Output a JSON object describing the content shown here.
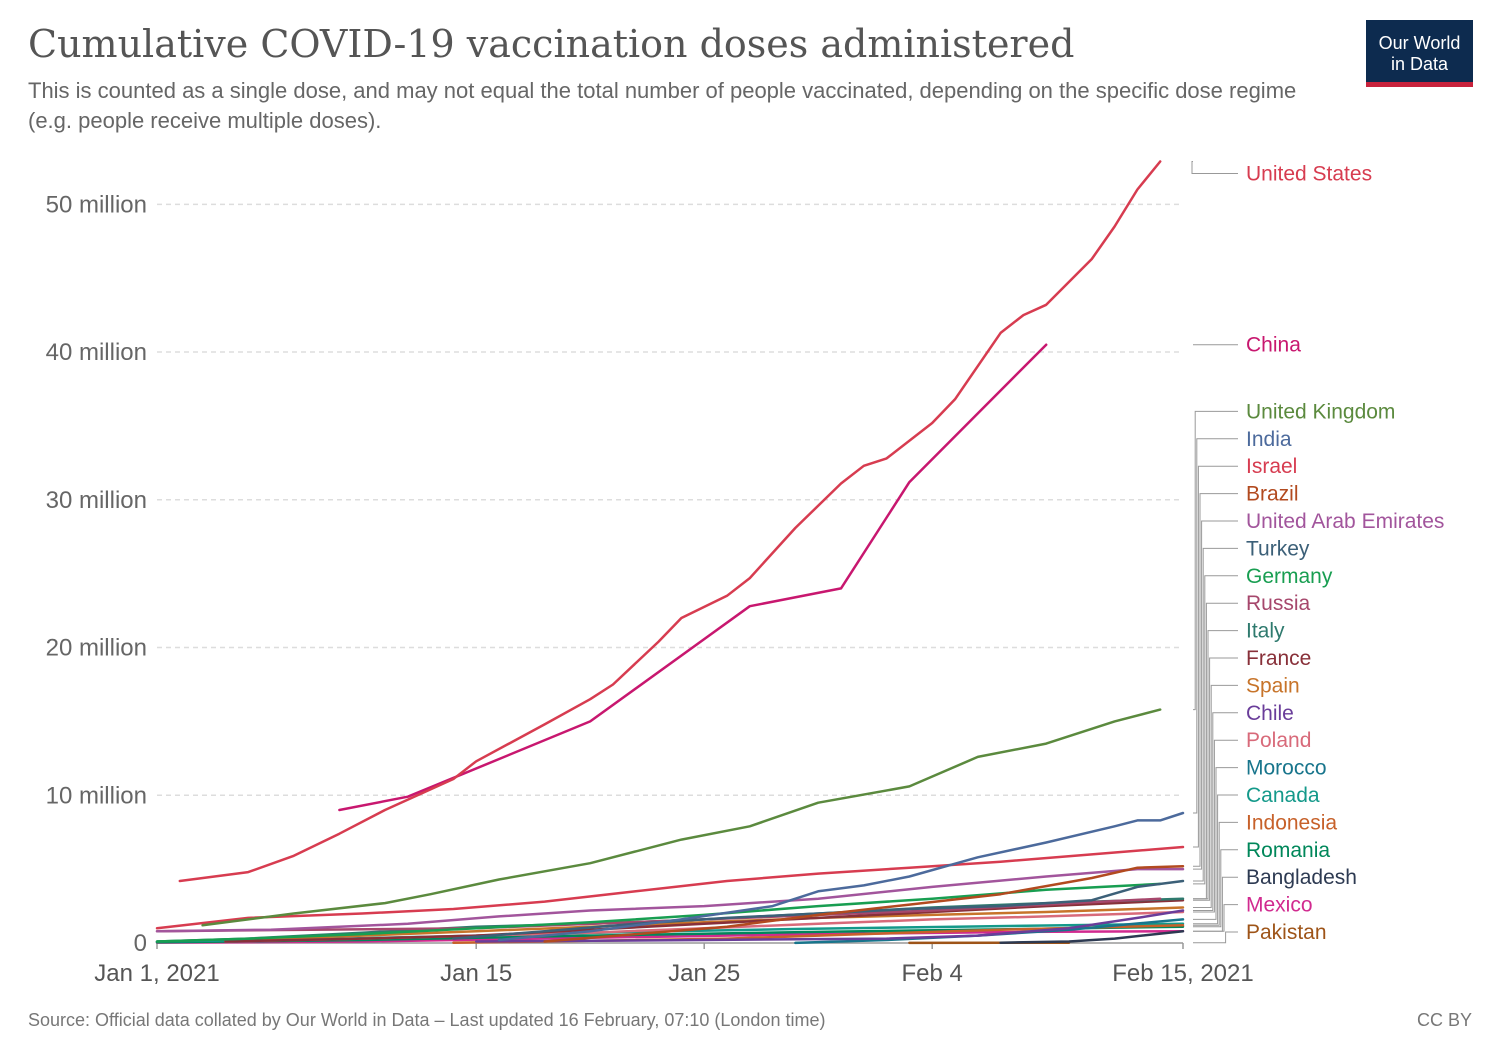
{
  "header": {
    "title": "Cumulative COVID-19 vaccination doses administered",
    "subtitle": "This is counted as a single dose, and may not equal the total number of people vaccinated, depending on the specific dose regime (e.g. people receive multiple doses).",
    "logo_line1": "Our World",
    "logo_line2": "in Data"
  },
  "footer": {
    "source": "Source: Official data collated by Our World in Data – Last updated 16 February, 07:10 (London time)",
    "license": "CC BY"
  },
  "chart_data": {
    "type": "line",
    "title": "Cumulative COVID-19 vaccination doses administered",
    "xlabel": "",
    "ylabel": "",
    "x_start": "2021-01-01",
    "x_end": "2021-02-15",
    "ylim": [
      0,
      53000000
    ],
    "grid": "horizontal dashed",
    "legend": "right",
    "y_ticks": [
      {
        "value": 0,
        "label": "0"
      },
      {
        "value": 10000000,
        "label": "10 million"
      },
      {
        "value": 20000000,
        "label": "20 million"
      },
      {
        "value": 30000000,
        "label": "30 million"
      },
      {
        "value": 40000000,
        "label": "40 million"
      },
      {
        "value": 50000000,
        "label": "50 million"
      }
    ],
    "x_ticks": [
      {
        "date": "2021-01-01",
        "label": "Jan 1, 2021"
      },
      {
        "date": "2021-01-15",
        "label": "Jan 15"
      },
      {
        "date": "2021-01-25",
        "label": "Jan 25"
      },
      {
        "date": "2021-02-04",
        "label": "Feb 4"
      },
      {
        "date": "2021-02-15",
        "label": "Feb 15, 2021"
      }
    ],
    "series": [
      {
        "name": "United States",
        "color": "#d73c50",
        "points": [
          [
            "2021-01-02",
            4200000
          ],
          [
            "2021-01-05",
            4800000
          ],
          [
            "2021-01-07",
            5900000
          ],
          [
            "2021-01-09",
            7400000
          ],
          [
            "2021-01-11",
            9000000
          ],
          [
            "2021-01-14",
            11100000
          ],
          [
            "2021-01-15",
            12300000
          ],
          [
            "2021-01-18",
            14800000
          ],
          [
            "2021-01-20",
            16500000
          ],
          [
            "2021-01-21",
            17500000
          ],
          [
            "2021-01-23",
            20400000
          ],
          [
            "2021-01-24",
            22000000
          ],
          [
            "2021-01-26",
            23500000
          ],
          [
            "2021-01-27",
            24700000
          ],
          [
            "2021-01-29",
            28100000
          ],
          [
            "2021-01-31",
            31100000
          ],
          [
            "2021-02-01",
            32300000
          ],
          [
            "2021-02-02",
            32800000
          ],
          [
            "2021-02-04",
            35200000
          ],
          [
            "2021-02-05",
            36800000
          ],
          [
            "2021-02-07",
            41300000
          ],
          [
            "2021-02-08",
            42500000
          ],
          [
            "2021-02-09",
            43200000
          ],
          [
            "2021-02-11",
            46300000
          ],
          [
            "2021-02-12",
            48500000
          ],
          [
            "2021-02-13",
            51000000
          ],
          [
            "2021-02-14",
            52900000
          ]
        ]
      },
      {
        "name": "China",
        "color": "#c8176f",
        "points": [
          [
            "2021-01-09",
            9000000
          ],
          [
            "2021-01-12",
            9900000
          ],
          [
            "2021-01-20",
            15000000
          ],
          [
            "2021-01-27",
            22800000
          ],
          [
            "2021-01-31",
            24000000
          ],
          [
            "2021-02-03",
            31200000
          ],
          [
            "2021-02-09",
            40500000
          ]
        ]
      },
      {
        "name": "United Kingdom",
        "color": "#5b8a3e",
        "points": [
          [
            "2021-01-03",
            1200000
          ],
          [
            "2021-01-07",
            2000000
          ],
          [
            "2021-01-11",
            2700000
          ],
          [
            "2021-01-13",
            3300000
          ],
          [
            "2021-01-16",
            4300000
          ],
          [
            "2021-01-20",
            5400000
          ],
          [
            "2021-01-24",
            7000000
          ],
          [
            "2021-01-27",
            7900000
          ],
          [
            "2021-01-30",
            9500000
          ],
          [
            "2021-02-03",
            10600000
          ],
          [
            "2021-02-06",
            12600000
          ],
          [
            "2021-02-09",
            13500000
          ],
          [
            "2021-02-12",
            15000000
          ],
          [
            "2021-02-14",
            15800000
          ]
        ]
      },
      {
        "name": "India",
        "color": "#4c6a9c",
        "points": [
          [
            "2021-01-16",
            200000
          ],
          [
            "2021-01-20",
            800000
          ],
          [
            "2021-01-24",
            1600000
          ],
          [
            "2021-01-28",
            2500000
          ],
          [
            "2021-01-30",
            3500000
          ],
          [
            "2021-02-01",
            3900000
          ],
          [
            "2021-02-03",
            4500000
          ],
          [
            "2021-02-06",
            5800000
          ],
          [
            "2021-02-09",
            6800000
          ],
          [
            "2021-02-12",
            7900000
          ],
          [
            "2021-02-13",
            8300000
          ],
          [
            "2021-02-14",
            8300000
          ],
          [
            "2021-02-15",
            8800000
          ]
        ]
      },
      {
        "name": "Israel",
        "color": "#d73c50",
        "points": [
          [
            "2021-01-01",
            1000000
          ],
          [
            "2021-01-05",
            1700000
          ],
          [
            "2021-01-10",
            2000000
          ],
          [
            "2021-01-14",
            2300000
          ],
          [
            "2021-01-18",
            2800000
          ],
          [
            "2021-01-22",
            3500000
          ],
          [
            "2021-01-26",
            4200000
          ],
          [
            "2021-01-30",
            4700000
          ],
          [
            "2021-02-03",
            5100000
          ],
          [
            "2021-02-07",
            5500000
          ],
          [
            "2021-02-11",
            6000000
          ],
          [
            "2021-02-15",
            6500000
          ]
        ]
      },
      {
        "name": "Brazil",
        "color": "#b24a1f",
        "points": [
          [
            "2021-01-18",
            100000
          ],
          [
            "2021-01-22",
            600000
          ],
          [
            "2021-01-26",
            1100000
          ],
          [
            "2021-01-30",
            1900000
          ],
          [
            "2021-02-03",
            2600000
          ],
          [
            "2021-02-07",
            3300000
          ],
          [
            "2021-02-11",
            4400000
          ],
          [
            "2021-02-13",
            5100000
          ],
          [
            "2021-02-15",
            5200000
          ]
        ]
      },
      {
        "name": "United Arab Emirates",
        "color": "#a2559c",
        "points": [
          [
            "2021-01-01",
            800000
          ],
          [
            "2021-01-06",
            900000
          ],
          [
            "2021-01-12",
            1300000
          ],
          [
            "2021-01-16",
            1800000
          ],
          [
            "2021-01-20",
            2200000
          ],
          [
            "2021-01-25",
            2500000
          ],
          [
            "2021-01-30",
            3000000
          ],
          [
            "2021-02-04",
            3800000
          ],
          [
            "2021-02-09",
            4500000
          ],
          [
            "2021-02-13",
            5000000
          ],
          [
            "2021-02-15",
            5000000
          ]
        ]
      },
      {
        "name": "Turkey",
        "color": "#3c6078",
        "points": [
          [
            "2021-01-14",
            300000
          ],
          [
            "2021-01-18",
            800000
          ],
          [
            "2021-01-22",
            1300000
          ],
          [
            "2021-01-26",
            1700000
          ],
          [
            "2021-01-30",
            2000000
          ],
          [
            "2021-02-03",
            2300000
          ],
          [
            "2021-02-07",
            2500000
          ],
          [
            "2021-02-11",
            2900000
          ],
          [
            "2021-02-13",
            3800000
          ],
          [
            "2021-02-15",
            4200000
          ]
        ]
      },
      {
        "name": "Germany",
        "color": "#189e51",
        "points": [
          [
            "2021-01-01",
            100000
          ],
          [
            "2021-01-05",
            300000
          ],
          [
            "2021-01-10",
            600000
          ],
          [
            "2021-01-15",
            1000000
          ],
          [
            "2021-01-20",
            1400000
          ],
          [
            "2021-01-25",
            1900000
          ],
          [
            "2021-01-30",
            2500000
          ],
          [
            "2021-02-04",
            3000000
          ],
          [
            "2021-02-09",
            3600000
          ],
          [
            "2021-02-14",
            4000000
          ]
        ]
      },
      {
        "name": "Russia",
        "color": "#a6476c",
        "points": [
          [
            "2021-01-01",
            800000
          ],
          [
            "2021-01-15",
            1000000
          ],
          [
            "2021-01-25",
            1600000
          ],
          [
            "2021-02-04",
            2200000
          ],
          [
            "2021-02-14",
            3000000
          ]
        ]
      },
      {
        "name": "Italy",
        "color": "#2f7a6e",
        "points": [
          [
            "2021-01-01",
            100000
          ],
          [
            "2021-01-05",
            300000
          ],
          [
            "2021-01-10",
            700000
          ],
          [
            "2021-01-15",
            1100000
          ],
          [
            "2021-01-20",
            1300000
          ],
          [
            "2021-01-25",
            1600000
          ],
          [
            "2021-01-30",
            2000000
          ],
          [
            "2021-02-04",
            2400000
          ],
          [
            "2021-02-09",
            2700000
          ],
          [
            "2021-02-15",
            3000000
          ]
        ]
      },
      {
        "name": "France",
        "color": "#883039",
        "points": [
          [
            "2021-01-04",
            100000
          ],
          [
            "2021-01-10",
            300000
          ],
          [
            "2021-01-15",
            500000
          ],
          [
            "2021-01-20",
            900000
          ],
          [
            "2021-01-25",
            1300000
          ],
          [
            "2021-01-30",
            1700000
          ],
          [
            "2021-02-04",
            2100000
          ],
          [
            "2021-02-09",
            2500000
          ],
          [
            "2021-02-15",
            2900000
          ]
        ]
      },
      {
        "name": "Spain",
        "color": "#c7742a",
        "points": [
          [
            "2021-01-04",
            200000
          ],
          [
            "2021-01-10",
            500000
          ],
          [
            "2021-01-15",
            800000
          ],
          [
            "2021-01-20",
            1100000
          ],
          [
            "2021-01-25",
            1400000
          ],
          [
            "2021-01-30",
            1700000
          ],
          [
            "2021-02-04",
            1900000
          ],
          [
            "2021-02-09",
            2100000
          ],
          [
            "2021-02-15",
            2400000
          ]
        ]
      },
      {
        "name": "Chile",
        "color": "#6a3d9a",
        "points": [
          [
            "2021-01-15",
            100000
          ],
          [
            "2021-01-25",
            200000
          ],
          [
            "2021-02-02",
            300000
          ],
          [
            "2021-02-06",
            500000
          ],
          [
            "2021-02-10",
            1000000
          ],
          [
            "2021-02-13",
            1700000
          ],
          [
            "2021-02-15",
            2200000
          ]
        ]
      },
      {
        "name": "Poland",
        "color": "#d86a7a",
        "points": [
          [
            "2021-01-04",
            100000
          ],
          [
            "2021-01-10",
            300000
          ],
          [
            "2021-01-15",
            500000
          ],
          [
            "2021-01-20",
            700000
          ],
          [
            "2021-01-25",
            1000000
          ],
          [
            "2021-01-30",
            1300000
          ],
          [
            "2021-02-04",
            1600000
          ],
          [
            "2021-02-09",
            1800000
          ],
          [
            "2021-02-15",
            2100000
          ]
        ]
      },
      {
        "name": "Morocco",
        "color": "#18758c",
        "points": [
          [
            "2021-01-29",
            10000
          ],
          [
            "2021-02-02",
            200000
          ],
          [
            "2021-02-06",
            500000
          ],
          [
            "2021-02-10",
            900000
          ],
          [
            "2021-02-15",
            1600000
          ]
        ]
      },
      {
        "name": "Indonesia",
        "color": "#c7612a",
        "points": [
          [
            "2021-01-14",
            20000
          ],
          [
            "2021-01-20",
            150000
          ],
          [
            "2021-01-26",
            300000
          ],
          [
            "2021-02-01",
            600000
          ],
          [
            "2021-02-07",
            900000
          ],
          [
            "2021-02-15",
            1200000
          ]
        ]
      },
      {
        "name": "Canada",
        "color": "#14998a",
        "points": [
          [
            "2021-01-01",
            100000
          ],
          [
            "2021-01-08",
            250000
          ],
          [
            "2021-01-15",
            500000
          ],
          [
            "2021-01-22",
            750000
          ],
          [
            "2021-01-29",
            950000
          ],
          [
            "2021-02-05",
            1100000
          ],
          [
            "2021-02-15",
            1300000
          ]
        ]
      },
      {
        "name": "Romania",
        "color": "#00875a",
        "points": [
          [
            "2021-01-01",
            50000
          ],
          [
            "2021-01-10",
            200000
          ],
          [
            "2021-01-20",
            500000
          ],
          [
            "2021-01-30",
            750000
          ],
          [
            "2021-02-08",
            950000
          ],
          [
            "2021-02-15",
            1100000
          ]
        ]
      },
      {
        "name": "Bangladesh",
        "color": "#2d3a52",
        "points": [
          [
            "2021-02-07",
            20000
          ],
          [
            "2021-02-10",
            100000
          ],
          [
            "2021-02-12",
            300000
          ],
          [
            "2021-02-15",
            800000
          ]
        ]
      },
      {
        "name": "Mexico",
        "color": "#d12a8f",
        "points": [
          [
            "2021-01-01",
            30000
          ],
          [
            "2021-01-10",
            100000
          ],
          [
            "2021-01-20",
            350000
          ],
          [
            "2021-01-30",
            600000
          ],
          [
            "2021-02-08",
            750000
          ],
          [
            "2021-02-15",
            800000
          ]
        ]
      },
      {
        "name": "Pakistan",
        "color": "#9e5418",
        "points": [
          [
            "2021-02-03",
            5000
          ],
          [
            "2021-02-07",
            15000
          ],
          [
            "2021-02-10",
            20000
          ]
        ]
      }
    ]
  }
}
